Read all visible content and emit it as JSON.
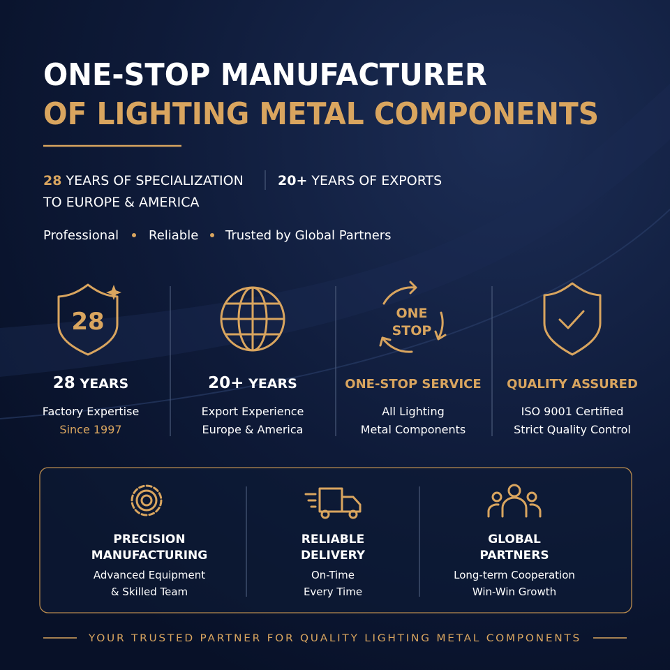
{
  "header": {
    "title_lines": [
      "ONE-STOP MANUFACTURER",
      "OF LIGHTING METAL COMPONENTS"
    ],
    "highlights": [
      {
        "number": "28",
        "text": "YEARS OF SPECIALIZATION"
      },
      {
        "number": "20+",
        "text": "YEARS OF EXPORTS"
      }
    ],
    "highlights_continuation": "TO EUROPE & AMERICA",
    "tags": [
      "Professional",
      "Reliable",
      "Trusted by Global Partners"
    ]
  },
  "features": [
    {
      "icon_label": "28",
      "number": "28",
      "title": "YEARS",
      "lines": [
        "Factory Expertise",
        "Since 1997"
      ]
    },
    {
      "number": "20+",
      "title": "YEARS",
      "lines": [
        "Export Experience",
        "Europe & America"
      ]
    },
    {
      "icon_label": [
        "ONE",
        "STOP"
      ],
      "title": "ONE-STOP SERVICE",
      "lines": [
        "All Lighting",
        "Metal Components"
      ]
    },
    {
      "title": "QUALITY ASSURED",
      "lines": [
        "ISO 9001 Certified",
        "Strict Quality Control"
      ]
    }
  ],
  "strengths": [
    {
      "title": [
        "PRECISION",
        "MANUFACTURING"
      ],
      "lines": [
        "Advanced Equipment",
        "& Skilled Team"
      ]
    },
    {
      "title": [
        "RELIABLE",
        "DELIVERY"
      ],
      "lines": [
        "On-Time",
        "Every Time"
      ]
    },
    {
      "title": [
        "GLOBAL",
        "PARTNERS"
      ],
      "lines": [
        "Long-term Cooperation",
        "Win-Win Growth"
      ]
    }
  ],
  "footer": "YOUR TRUSTED PARTNER FOR QUALITY LIGHTING METAL COMPONENTS"
}
